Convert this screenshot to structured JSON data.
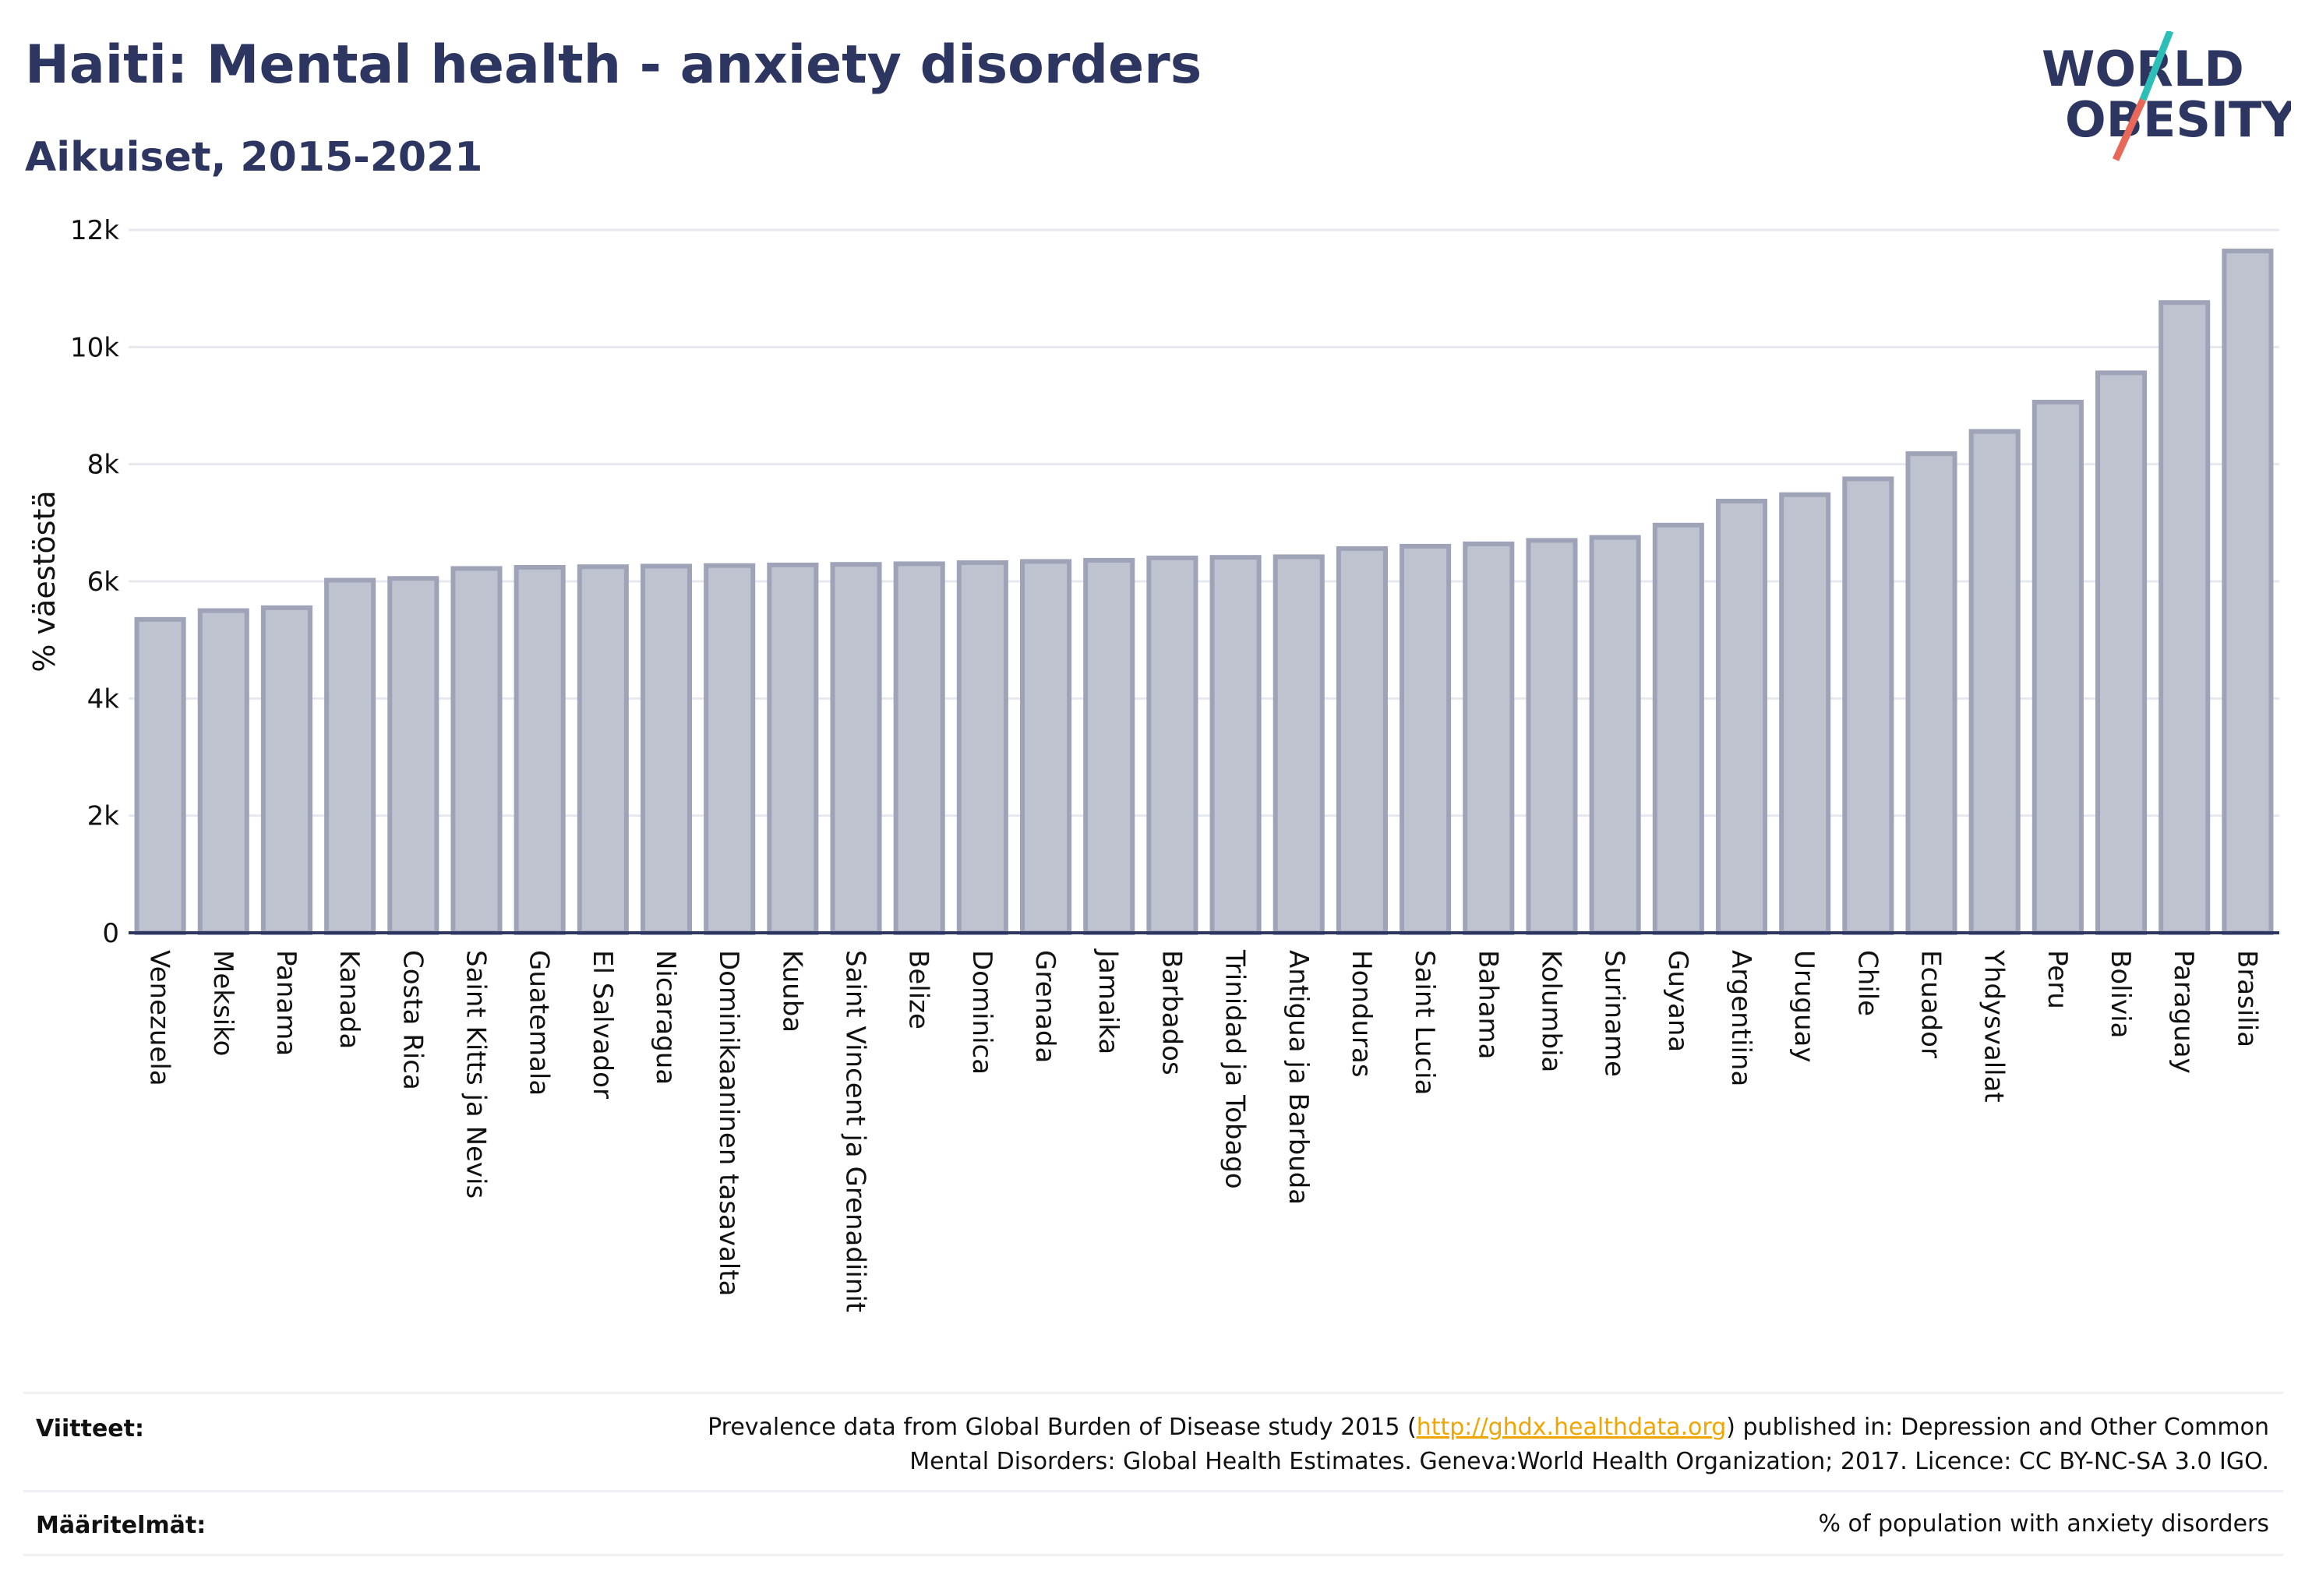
{
  "header": {
    "title": "Haiti: Mental health - anxiety disorders",
    "subtitle": "Aikuiset, 2015-2021"
  },
  "logo": {
    "line1": "WORLD",
    "line2": "OBESITY",
    "slash_colors": [
      "#2bbfb7",
      "#e8685a"
    ]
  },
  "chart_data": {
    "type": "bar",
    "ylabel": "% väestöstä",
    "ylim": [
      0,
      12000
    ],
    "yticks": [
      0,
      2000,
      4000,
      6000,
      8000,
      10000,
      12000
    ],
    "ytick_labels": [
      "0",
      "2k",
      "4k",
      "6k",
      "8k",
      "10k",
      "12k"
    ],
    "grid": true,
    "bar_fill": "#bfc3d0",
    "bar_stroke": "#9ea3b8",
    "categories": [
      "Venezuela",
      "Meksiko",
      "Panama",
      "Kanada",
      "Costa Rica",
      "Saint Kitts ja Nevis",
      "Guatemala",
      "El Salvador",
      "Nicaragua",
      "Dominikaaninen tasavalta",
      "Kuuba",
      "Saint Vincent ja Grenadiinit",
      "Belize",
      "Dominica",
      "Grenada",
      "Jamaika",
      "Barbados",
      "Trinidad ja Tobago",
      "Antigua ja Barbuda",
      "Honduras",
      "Saint Lucia",
      "Bahama",
      "Kolumbia",
      "Suriname",
      "Guyana",
      "Argentiina",
      "Uruguay",
      "Chile",
      "Ecuador",
      "Yhdysvallat",
      "Peru",
      "Bolivia",
      "Paraguay",
      "Brasilia"
    ],
    "values": [
      5350,
      5500,
      5550,
      6020,
      6050,
      6220,
      6240,
      6250,
      6260,
      6270,
      6280,
      6290,
      6300,
      6320,
      6340,
      6360,
      6400,
      6410,
      6420,
      6560,
      6600,
      6640,
      6700,
      6750,
      6960,
      7370,
      7480,
      7750,
      8180,
      8560,
      9060,
      9560,
      10760,
      11640
    ]
  },
  "footer": {
    "sources_label": "Viitteet:",
    "sources_text_before": "Prevalence data from Global Burden of Disease study 2015 (",
    "sources_link": "http://ghdx.healthdata.org",
    "sources_text_after": ") published in: Depression and Other Common",
    "sources_line2": "Mental Disorders: Global Health Estimates. Geneva:World Health Organization; 2017. Licence: CC BY-NC-SA 3.0 IGO.",
    "definitions_label": "Määritelmät:",
    "definitions_text": "% of population with anxiety disorders"
  }
}
